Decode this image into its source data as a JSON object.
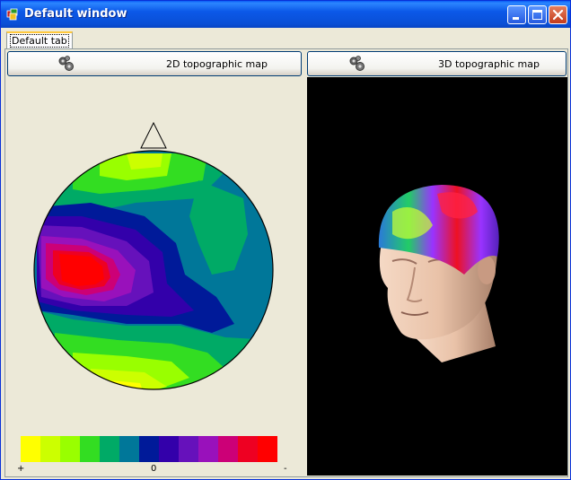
{
  "window": {
    "title": "Default window"
  },
  "title_buttons": {
    "minimize": "minimize",
    "maximize": "maximize",
    "close": "close"
  },
  "tabs": [
    {
      "label": "Default tab"
    }
  ],
  "buttons": {
    "map2d": {
      "label": "2D topographic map",
      "icon": "gears-icon"
    },
    "map3d": {
      "label": "3D topographic map",
      "icon": "gears-icon"
    }
  },
  "colorbar": {
    "colors": [
      "#ffff00",
      "#ccff00",
      "#99ff00",
      "#33dd22",
      "#00aa66",
      "#007799",
      "#001a99",
      "#3300aa",
      "#6611bb",
      "#9911bb",
      "#cc0077",
      "#ee0022",
      "#ff0000"
    ],
    "labels": {
      "left": "+",
      "center": "0",
      "right": "-"
    }
  },
  "colors": {
    "titlebar": "#0a5cf5",
    "face": "#ece9d8",
    "view_bg": "#000000"
  }
}
